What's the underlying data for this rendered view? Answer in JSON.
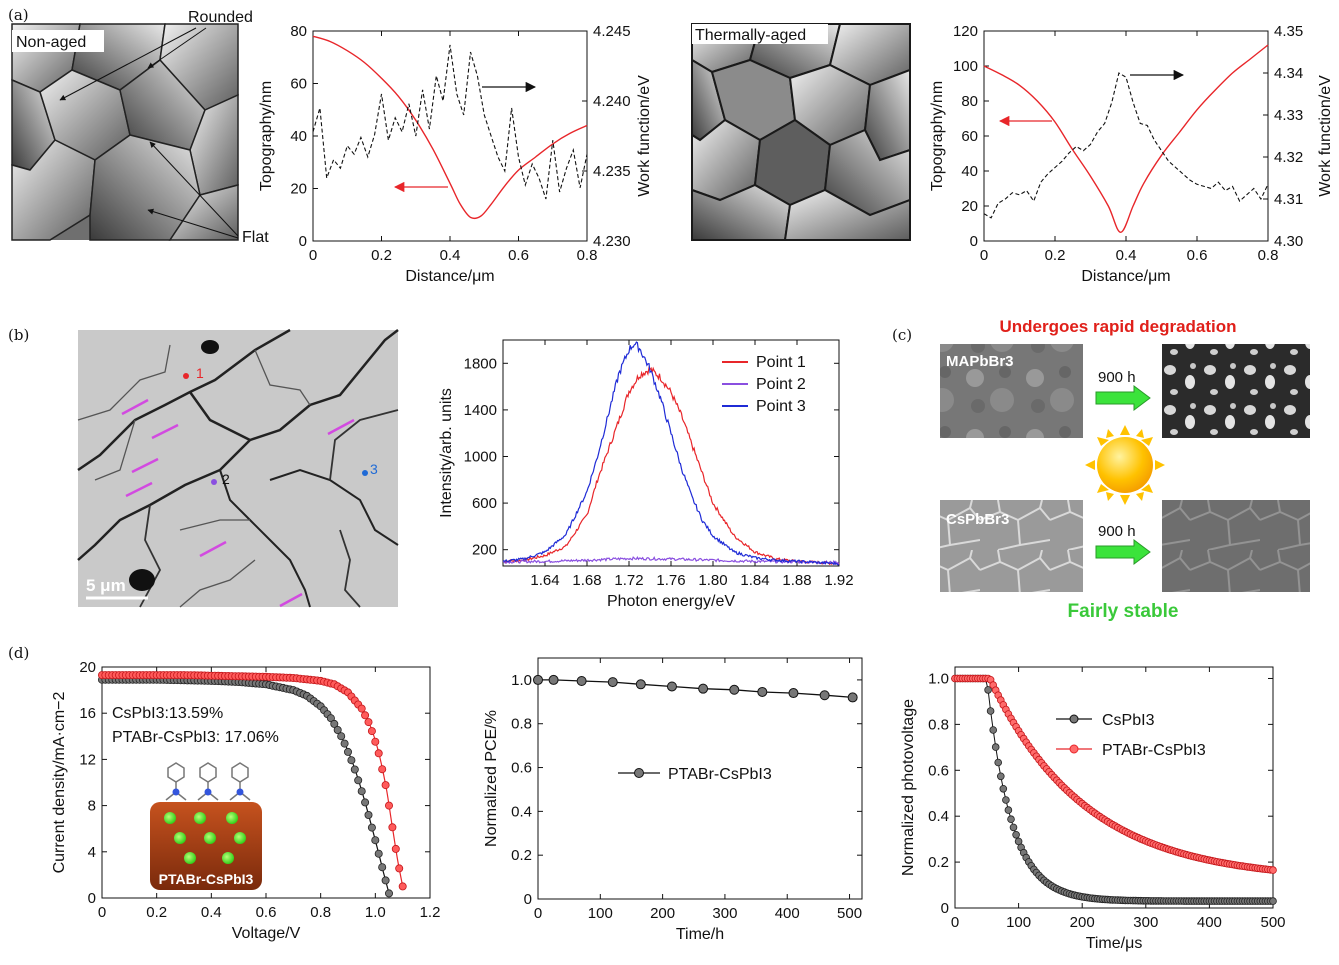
{
  "panel_labels": {
    "a": "(a)",
    "b": "(b)",
    "c": "(c)",
    "d": "(d)"
  },
  "images": {
    "nonaged": {
      "label": "Non-aged",
      "rounded": "Rounded",
      "flat": "Flat"
    },
    "aged": {
      "label": "Thermally-aged"
    },
    "sem": {
      "scale": "5 μm",
      "p1": "1",
      "p2": "2",
      "p3": "3"
    },
    "c_panel": {
      "title_top": "Undergoes rapid degradation",
      "title_bottom": "Fairly stable",
      "mapbbr3": "MAPbBr3",
      "cspbbr3": "CsPbBr3",
      "time1": "900 h",
      "time2": "900 h"
    },
    "d_inset": "PTABr-CsPbI3",
    "d_note1": "CsPbI3:13.59%",
    "d_note2": "PTABr-CsPbI3: 17.06%"
  },
  "colors": {
    "red": "#e8262a",
    "blue": "#1f2bd6",
    "purple": "#8a4fe0",
    "black": "#111111",
    "arrow_green": "#3be33b",
    "sun": "#ffc200",
    "title_red": "#e0201a",
    "title_green": "#3ac93a"
  },
  "chart_data": [
    {
      "id": "a1",
      "type": "line",
      "xlabel": "Distance/μm",
      "ylabel": "Topography/nm",
      "y2label": "Work function/eV",
      "xlim": [
        0,
        0.8
      ],
      "ylim": [
        0,
        80
      ],
      "y2lim": [
        4.23,
        4.245
      ],
      "xticks": [
        "0",
        "0.2",
        "0.4",
        "0.6",
        "0.8"
      ],
      "yticks": [
        "0",
        "20",
        "40",
        "60",
        "80"
      ],
      "y2ticks": [
        "4.230",
        "4.235",
        "4.240",
        "4.245"
      ],
      "series": [
        {
          "axis": "left",
          "style": "solid-red",
          "x": [
            0,
            0.05,
            0.1,
            0.15,
            0.2,
            0.25,
            0.3,
            0.35,
            0.4,
            0.43,
            0.46,
            0.49,
            0.52,
            0.56,
            0.6,
            0.65,
            0.7,
            0.75,
            0.8
          ],
          "y": [
            78,
            76,
            72.5,
            68,
            62,
            55,
            46,
            35,
            22,
            14,
            9,
            9.5,
            14,
            21,
            27,
            32,
            37,
            41,
            44
          ]
        },
        {
          "axis": "right",
          "style": "dashed-black",
          "x": [
            0,
            0.02,
            0.04,
            0.06,
            0.08,
            0.1,
            0.12,
            0.14,
            0.16,
            0.18,
            0.2,
            0.22,
            0.24,
            0.26,
            0.28,
            0.3,
            0.32,
            0.34,
            0.36,
            0.38,
            0.4,
            0.42,
            0.44,
            0.46,
            0.48,
            0.5,
            0.52,
            0.54,
            0.56,
            0.58,
            0.6,
            0.62,
            0.64,
            0.66,
            0.68,
            0.7,
            0.72,
            0.74,
            0.76,
            0.78,
            0.8
          ],
          "y": [
            4.2378,
            4.2395,
            4.2345,
            4.2358,
            4.2352,
            4.2368,
            4.2362,
            4.2374,
            4.236,
            4.2376,
            4.2405,
            4.2372,
            4.2388,
            4.2378,
            4.2398,
            4.2375,
            4.2408,
            4.238,
            4.2418,
            4.24,
            4.244,
            4.2405,
            4.239,
            4.2435,
            4.2418,
            4.239,
            4.2375,
            4.236,
            4.235,
            4.2395,
            4.236,
            4.234,
            4.2355,
            4.2345,
            4.233,
            4.2372,
            4.2335,
            4.2352,
            4.2365,
            4.2338,
            4.2362
          ]
        }
      ],
      "annotations": {
        "right_arrow": "→",
        "left_arrow": "←"
      }
    },
    {
      "id": "a2",
      "type": "line",
      "xlabel": "Distance/μm",
      "ylabel": "Topography/nm",
      "y2label": "Work function/eV",
      "xlim": [
        0,
        0.8
      ],
      "ylim": [
        0,
        120
      ],
      "y2lim": [
        4.3,
        4.35
      ],
      "xticks": [
        "0",
        "0.2",
        "0.4",
        "0.6",
        "0.8"
      ],
      "yticks": [
        "0",
        "20",
        "40",
        "60",
        "80",
        "100",
        "120"
      ],
      "y2ticks": [
        "4.30",
        "4.31",
        "4.32",
        "4.33",
        "4.34",
        "4.35"
      ],
      "series": [
        {
          "axis": "left",
          "style": "solid-red",
          "x": [
            0,
            0.05,
            0.1,
            0.15,
            0.2,
            0.25,
            0.3,
            0.35,
            0.385,
            0.42,
            0.45,
            0.5,
            0.55,
            0.6,
            0.65,
            0.7,
            0.75,
            0.8
          ],
          "y": [
            100,
            95,
            89,
            80,
            68,
            52,
            37,
            20,
            5,
            20,
            33,
            49,
            62,
            75,
            86,
            96,
            104,
            112
          ]
        },
        {
          "axis": "right",
          "style": "dashed-black",
          "x": [
            0,
            0.02,
            0.04,
            0.06,
            0.08,
            0.1,
            0.12,
            0.14,
            0.16,
            0.18,
            0.2,
            0.22,
            0.24,
            0.26,
            0.28,
            0.3,
            0.32,
            0.34,
            0.36,
            0.38,
            0.4,
            0.42,
            0.44,
            0.46,
            0.48,
            0.5,
            0.52,
            0.54,
            0.56,
            0.58,
            0.6,
            0.62,
            0.64,
            0.66,
            0.68,
            0.7,
            0.72,
            0.74,
            0.76,
            0.78,
            0.8
          ],
          "y": [
            4.3065,
            4.3055,
            4.309,
            4.31,
            4.3115,
            4.311,
            4.312,
            4.3095,
            4.314,
            4.316,
            4.3175,
            4.319,
            4.321,
            4.3225,
            4.3215,
            4.323,
            4.326,
            4.328,
            4.333,
            4.34,
            4.339,
            4.333,
            4.328,
            4.3275,
            4.324,
            4.3215,
            4.319,
            4.3175,
            4.316,
            4.3145,
            4.3135,
            4.313,
            4.3125,
            4.314,
            4.312,
            4.313,
            4.3095,
            4.311,
            4.3125,
            4.31,
            4.3135
          ]
        }
      ]
    },
    {
      "id": "b",
      "type": "line",
      "xlabel": "Photon energy/eV",
      "ylabel": "Intensity/arb. units",
      "xlim": [
        1.6,
        1.92
      ],
      "ylim": [
        60,
        2000
      ],
      "xticks": [
        "1.64",
        "1.68",
        "1.72",
        "1.76",
        "1.80",
        "1.84",
        "1.88",
        "1.92"
      ],
      "yticks": [
        "200",
        "600",
        "1000",
        "1400",
        "1800"
      ],
      "legend": "top-right",
      "series": [
        {
          "name": "Point 1",
          "color": "red",
          "x": [
            1.6,
            1.62,
            1.64,
            1.66,
            1.68,
            1.69,
            1.7,
            1.71,
            1.72,
            1.73,
            1.74,
            1.75,
            1.76,
            1.77,
            1.78,
            1.79,
            1.8,
            1.82,
            1.84,
            1.86,
            1.88,
            1.9,
            1.92
          ],
          "y": [
            100,
            110,
            150,
            230,
            500,
            800,
            1050,
            1300,
            1560,
            1700,
            1750,
            1680,
            1550,
            1350,
            1100,
            850,
            600,
            320,
            180,
            120,
            100,
            90,
            80
          ]
        },
        {
          "name": "Point 2",
          "color": "purple",
          "x": [
            1.6,
            1.64,
            1.68,
            1.72,
            1.76,
            1.8,
            1.84,
            1.88,
            1.92
          ],
          "y": [
            95,
            100,
            110,
            125,
            120,
            110,
            100,
            95,
            90
          ]
        },
        {
          "name": "Point 3",
          "color": "blue",
          "x": [
            1.6,
            1.62,
            1.64,
            1.66,
            1.68,
            1.69,
            1.7,
            1.71,
            1.72,
            1.725,
            1.73,
            1.74,
            1.75,
            1.76,
            1.77,
            1.78,
            1.79,
            1.8,
            1.82,
            1.84,
            1.86,
            1.88,
            1.9,
            1.92
          ],
          "y": [
            100,
            120,
            180,
            330,
            700,
            1000,
            1350,
            1700,
            1920,
            1970,
            1930,
            1750,
            1500,
            1200,
            900,
            650,
            450,
            320,
            180,
            130,
            110,
            100,
            90,
            80
          ]
        }
      ]
    },
    {
      "id": "d1",
      "type": "scatter",
      "xlabel": "Voltage/V",
      "ylabel": "Current density/mA·cm−2",
      "xlim": [
        0,
        1.2
      ],
      "ylim": [
        0,
        20
      ],
      "xticks": [
        "0",
        "0.2",
        "0.4",
        "0.6",
        "0.8",
        "1.0",
        "1.2"
      ],
      "yticks": [
        "0",
        "4",
        "8",
        "12",
        "16",
        "20"
      ],
      "series": [
        {
          "name": "CsPbI3",
          "color": "black",
          "x": [
            0,
            0.1,
            0.2,
            0.3,
            0.4,
            0.5,
            0.6,
            0.7,
            0.75,
            0.8,
            0.84,
            0.88,
            0.92,
            0.96,
            1.0,
            1.03,
            1.05
          ],
          "y": [
            18.9,
            18.9,
            18.9,
            18.85,
            18.8,
            18.7,
            18.5,
            18.0,
            17.5,
            16.6,
            15.5,
            13.8,
            11.5,
            8.5,
            5.0,
            2.2,
            0.4
          ]
        },
        {
          "name": "PTABr-CsPbI3",
          "color": "red",
          "x": [
            0,
            0.1,
            0.2,
            0.3,
            0.4,
            0.5,
            0.6,
            0.7,
            0.8,
            0.85,
            0.9,
            0.95,
            0.98,
            1.01,
            1.04,
            1.06,
            1.08,
            1.1
          ],
          "y": [
            19.3,
            19.3,
            19.3,
            19.3,
            19.25,
            19.2,
            19.15,
            19.05,
            18.8,
            18.5,
            17.8,
            16.4,
            15.0,
            12.8,
            9.5,
            6.5,
            3.5,
            1.0
          ]
        }
      ]
    },
    {
      "id": "d2",
      "type": "line",
      "xlabel": "Time/h",
      "ylabel": "Normalized PCE/%",
      "xlim": [
        0,
        520
      ],
      "ylim": [
        0,
        1.1
      ],
      "xticks": [
        "0",
        "100",
        "200",
        "300",
        "400",
        "500"
      ],
      "yticks": [
        "0",
        "0.2",
        "0.4",
        "0.6",
        "0.8",
        "1.0"
      ],
      "legend": "center",
      "series": [
        {
          "name": "PTABr-CsPbI3",
          "color": "black",
          "x": [
            0,
            25,
            70,
            120,
            165,
            215,
            265,
            315,
            360,
            410,
            460,
            505
          ],
          "y": [
            1.0,
            1.0,
            0.995,
            0.99,
            0.98,
            0.97,
            0.96,
            0.955,
            0.945,
            0.94,
            0.93,
            0.92
          ]
        }
      ]
    },
    {
      "id": "d3",
      "type": "scatter",
      "xlabel": "Time/μs",
      "ylabel": "Normalized photovoltage",
      "xlim": [
        0,
        500
      ],
      "ylim": [
        0,
        1.05
      ],
      "xticks": [
        "0",
        "100",
        "200",
        "300",
        "400",
        "500"
      ],
      "yticks": [
        "0",
        "0.2",
        "0.4",
        "0.6",
        "0.8",
        "1.0"
      ],
      "legend": "top-right",
      "series": [
        {
          "name": "CsPbI3",
          "color": "black",
          "t0": 50,
          "tau": 38,
          "floor": 0.03,
          "dt": 4
        },
        {
          "name": "PTABr-CsPbI3",
          "color": "red",
          "t0": 55,
          "tau": 150,
          "floor": 0.12,
          "dt": 4
        }
      ]
    }
  ]
}
